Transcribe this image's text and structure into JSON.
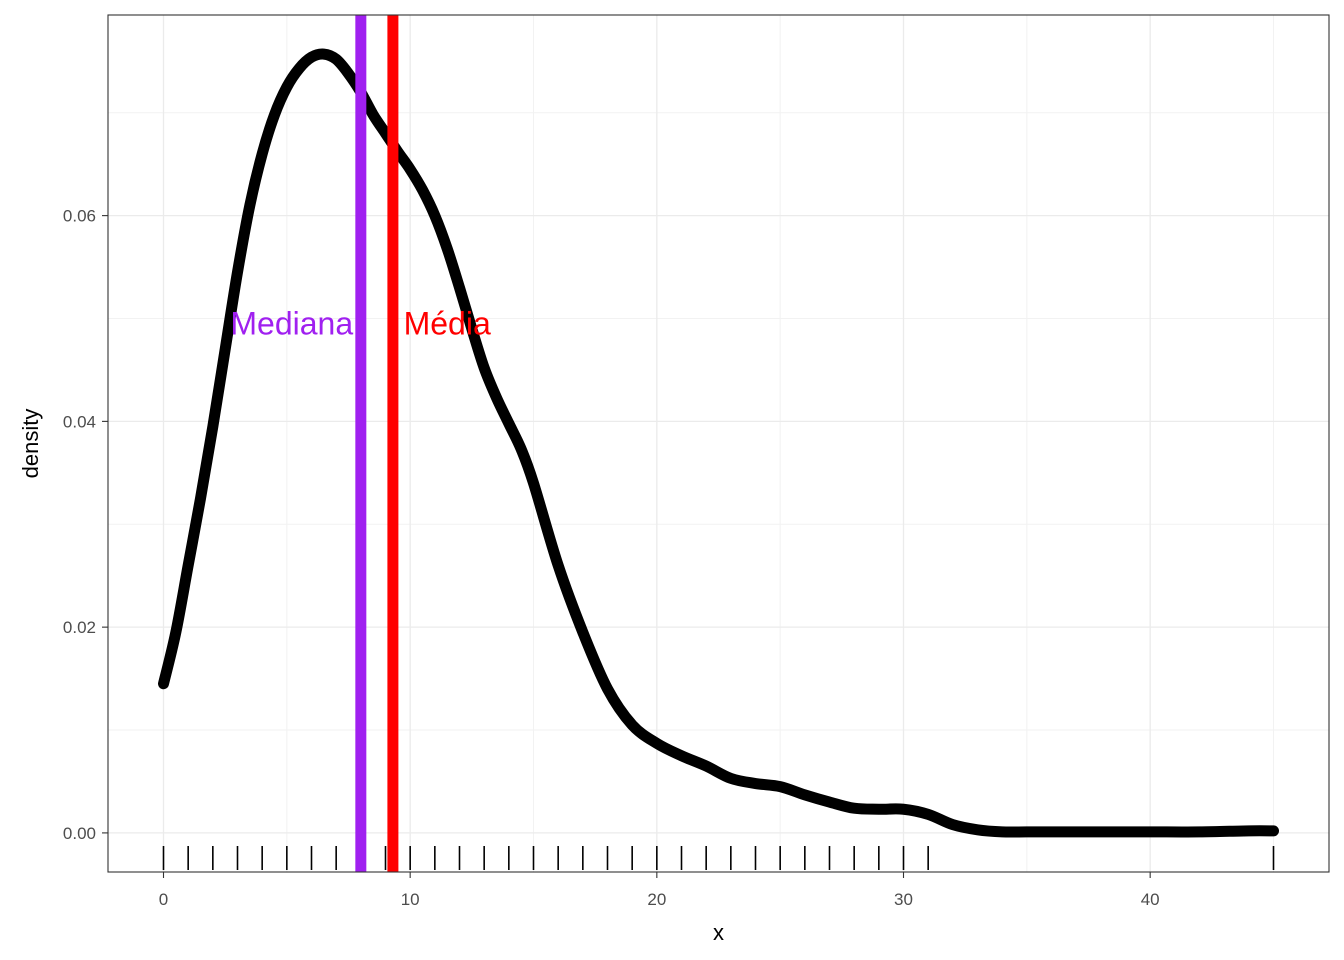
{
  "chart_data": {
    "type": "line",
    "title": "",
    "xlabel": "x",
    "ylabel": "density",
    "xlim": [
      -2.25,
      47.25
    ],
    "ylim": [
      -0.0038,
      0.0795
    ],
    "x_ticks": [
      0,
      10,
      20,
      30,
      40
    ],
    "x_tick_labels": [
      "0",
      "10",
      "20",
      "30",
      "40"
    ],
    "y_ticks": [
      0.0,
      0.02,
      0.04,
      0.06
    ],
    "y_tick_labels": [
      "0.00",
      "0.02",
      "0.04",
      "0.06"
    ],
    "grid": true,
    "series": [
      {
        "color": "#000000",
        "x": [
          0,
          0.5,
          1,
          1.5,
          2,
          2.5,
          3,
          3.5,
          4,
          4.5,
          5,
          5.5,
          6,
          6.5,
          7,
          7.5,
          8,
          8.5,
          9,
          9.5,
          10,
          10.5,
          11,
          11.5,
          12,
          12.5,
          13,
          13.5,
          14,
          14.5,
          15,
          16,
          17,
          18,
          19,
          20,
          21,
          22,
          23,
          24,
          25,
          26,
          27,
          28,
          29,
          30,
          31,
          32,
          33,
          34,
          35,
          36,
          38,
          40,
          42,
          44,
          45
        ],
        "y": [
          0.0145,
          0.0195,
          0.026,
          0.0325,
          0.0395,
          0.047,
          0.0545,
          0.061,
          0.066,
          0.0698,
          0.0725,
          0.0743,
          0.0754,
          0.0757,
          0.0752,
          0.0738,
          0.072,
          0.0698,
          0.068,
          0.0662,
          0.0645,
          0.0625,
          0.06,
          0.0568,
          0.053,
          0.049,
          0.0452,
          0.0423,
          0.0398,
          0.0373,
          0.034,
          0.026,
          0.0195,
          0.014,
          0.0105,
          0.0087,
          0.0075,
          0.0065,
          0.0053,
          0.0048,
          0.0045,
          0.0037,
          0.003,
          0.0024,
          0.0023,
          0.0023,
          0.0018,
          0.0008,
          0.0003,
          0.0001,
          0.0001,
          0.0001,
          0.0001,
          0.0001,
          0.0001,
          0.0002,
          0.0002
        ]
      }
    ],
    "vlines": [
      {
        "name": "Mediana",
        "x": 8,
        "color": "#a020f0"
      },
      {
        "name": "Média",
        "x": 9.3,
        "color": "#ff0000"
      }
    ],
    "annotations": [
      {
        "text": "Mediana",
        "x": 5.2,
        "y": 0.0495,
        "color": "#a020f0",
        "anchor": "middle"
      },
      {
        "text": "Média",
        "x": 11.5,
        "y": 0.0495,
        "color": "#ff0000",
        "anchor": "middle"
      }
    ],
    "rug": [
      0,
      1,
      2,
      3,
      4,
      5,
      6,
      7,
      8,
      9,
      10,
      11,
      12,
      13,
      14,
      15,
      16,
      17,
      18,
      19,
      20,
      21,
      22,
      23,
      24,
      25,
      26,
      27,
      28,
      29,
      30,
      31,
      45
    ]
  }
}
